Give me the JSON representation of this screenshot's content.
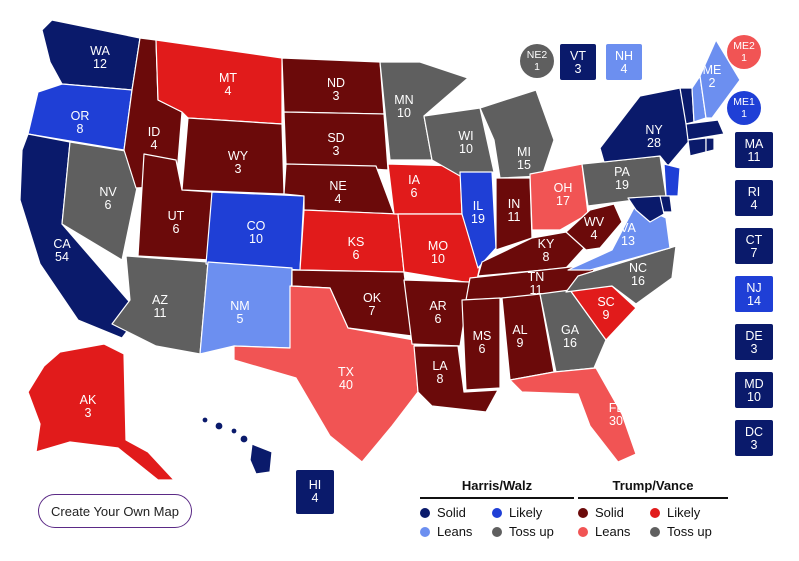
{
  "colors": {
    "dem_solid": "#0a1a6b",
    "dem_likely": "#1f3fd6",
    "dem_leans": "#6c8ff0",
    "tossup": "#5f5f5f",
    "rep_solid": "#6b0a0a",
    "rep_likely": "#e11b1b",
    "rep_leans": "#f15454",
    "border": "#ffffff"
  },
  "states": {
    "WA": {
      "abbr": "WA",
      "ev": "12",
      "rating": "dem_solid"
    },
    "OR": {
      "abbr": "OR",
      "ev": "8",
      "rating": "dem_likely"
    },
    "CA": {
      "abbr": "CA",
      "ev": "54",
      "rating": "dem_solid"
    },
    "NV": {
      "abbr": "NV",
      "ev": "6",
      "rating": "tossup"
    },
    "ID": {
      "abbr": "ID",
      "ev": "4",
      "rating": "rep_solid"
    },
    "MT": {
      "abbr": "MT",
      "ev": "4",
      "rating": "rep_likely"
    },
    "WY": {
      "abbr": "WY",
      "ev": "3",
      "rating": "rep_solid"
    },
    "UT": {
      "abbr": "UT",
      "ev": "6",
      "rating": "rep_solid"
    },
    "AZ": {
      "abbr": "AZ",
      "ev": "11",
      "rating": "tossup"
    },
    "CO": {
      "abbr": "CO",
      "ev": "10",
      "rating": "dem_likely"
    },
    "NM": {
      "abbr": "NM",
      "ev": "5",
      "rating": "dem_leans"
    },
    "ND": {
      "abbr": "ND",
      "ev": "3",
      "rating": "rep_solid"
    },
    "SD": {
      "abbr": "SD",
      "ev": "3",
      "rating": "rep_solid"
    },
    "NE": {
      "abbr": "NE",
      "ev": "4",
      "rating": "rep_solid"
    },
    "KS": {
      "abbr": "KS",
      "ev": "6",
      "rating": "rep_likely"
    },
    "OK": {
      "abbr": "OK",
      "ev": "7",
      "rating": "rep_solid"
    },
    "TX": {
      "abbr": "TX",
      "ev": "40",
      "rating": "rep_leans"
    },
    "MN": {
      "abbr": "MN",
      "ev": "10",
      "rating": "tossup"
    },
    "IA": {
      "abbr": "IA",
      "ev": "6",
      "rating": "rep_likely"
    },
    "MO": {
      "abbr": "MO",
      "ev": "10",
      "rating": "rep_likely"
    },
    "AR": {
      "abbr": "AR",
      "ev": "6",
      "rating": "rep_solid"
    },
    "LA": {
      "abbr": "LA",
      "ev": "8",
      "rating": "rep_solid"
    },
    "WI": {
      "abbr": "WI",
      "ev": "10",
      "rating": "tossup"
    },
    "IL": {
      "abbr": "IL",
      "ev": "19",
      "rating": "dem_likely"
    },
    "MI": {
      "abbr": "MI",
      "ev": "15",
      "rating": "tossup"
    },
    "IN": {
      "abbr": "IN",
      "ev": "11",
      "rating": "rep_solid"
    },
    "OH": {
      "abbr": "OH",
      "ev": "17",
      "rating": "rep_leans"
    },
    "KY": {
      "abbr": "KY",
      "ev": "8",
      "rating": "rep_solid"
    },
    "TN": {
      "abbr": "TN",
      "ev": "11",
      "rating": "rep_solid"
    },
    "MS": {
      "abbr": "MS",
      "ev": "6",
      "rating": "rep_solid"
    },
    "AL": {
      "abbr": "AL",
      "ev": "9",
      "rating": "rep_solid"
    },
    "GA": {
      "abbr": "GA",
      "ev": "16",
      "rating": "tossup"
    },
    "FL": {
      "abbr": "FL",
      "ev": "30",
      "rating": "rep_leans"
    },
    "SC": {
      "abbr": "SC",
      "ev": "9",
      "rating": "rep_likely"
    },
    "NC": {
      "abbr": "NC",
      "ev": "16",
      "rating": "tossup"
    },
    "VA": {
      "abbr": "VA",
      "ev": "13",
      "rating": "dem_leans"
    },
    "WV": {
      "abbr": "WV",
      "ev": "4",
      "rating": "rep_solid"
    },
    "PA": {
      "abbr": "PA",
      "ev": "19",
      "rating": "tossup"
    },
    "NY": {
      "abbr": "NY",
      "ev": "28",
      "rating": "dem_solid"
    },
    "ME": {
      "abbr": "ME",
      "ev": "2",
      "rating": "dem_leans"
    },
    "AK": {
      "abbr": "AK",
      "ev": "3",
      "rating": "rep_likely"
    },
    "HI": {
      "abbr": "HI",
      "ev": "4",
      "rating": "dem_solid"
    },
    "NJ": {
      "abbr": "NJ",
      "ev": "14",
      "rating": "dem_likely"
    },
    "DE": {
      "abbr": "DE",
      "ev": "3",
      "rating": "dem_solid"
    },
    "MD": {
      "abbr": "MD",
      "ev": "10",
      "rating": "dem_solid"
    },
    "MA": {
      "abbr": "MA",
      "ev": "11",
      "rating": "dem_solid"
    },
    "RI": {
      "abbr": "RI",
      "ev": "4",
      "rating": "dem_solid"
    },
    "CT": {
      "abbr": "CT",
      "ev": "7",
      "rating": "dem_solid"
    },
    "VT": {
      "abbr": "VT",
      "ev": "3",
      "rating": "dem_solid"
    },
    "NH": {
      "abbr": "NH",
      "ev": "4",
      "rating": "dem_leans"
    },
    "DC": {
      "abbr": "DC",
      "ev": "3",
      "rating": "dem_solid"
    }
  },
  "districts": {
    "NE2": {
      "abbr": "NE2",
      "ev": "1",
      "rating": "tossup"
    },
    "ME2": {
      "abbr": "ME2",
      "ev": "1",
      "rating": "rep_leans"
    },
    "ME1": {
      "abbr": "ME1",
      "ev": "1",
      "rating": "dem_likely"
    }
  },
  "create_button": "Create Your Own Map",
  "legend": {
    "dem_title": "Harris/Walz",
    "rep_title": "Trump/Vance",
    "dem_items": [
      {
        "label": "Solid",
        "rating": "dem_solid"
      },
      {
        "label": "Likely",
        "rating": "dem_likely"
      },
      {
        "label": "Leans",
        "rating": "dem_leans"
      },
      {
        "label": "Toss up",
        "rating": "tossup"
      }
    ],
    "rep_items": [
      {
        "label": "Solid",
        "rating": "rep_solid"
      },
      {
        "label": "Likely",
        "rating": "rep_likely"
      },
      {
        "label": "Leans",
        "rating": "rep_leans"
      },
      {
        "label": "Toss up",
        "rating": "tossup"
      }
    ]
  }
}
